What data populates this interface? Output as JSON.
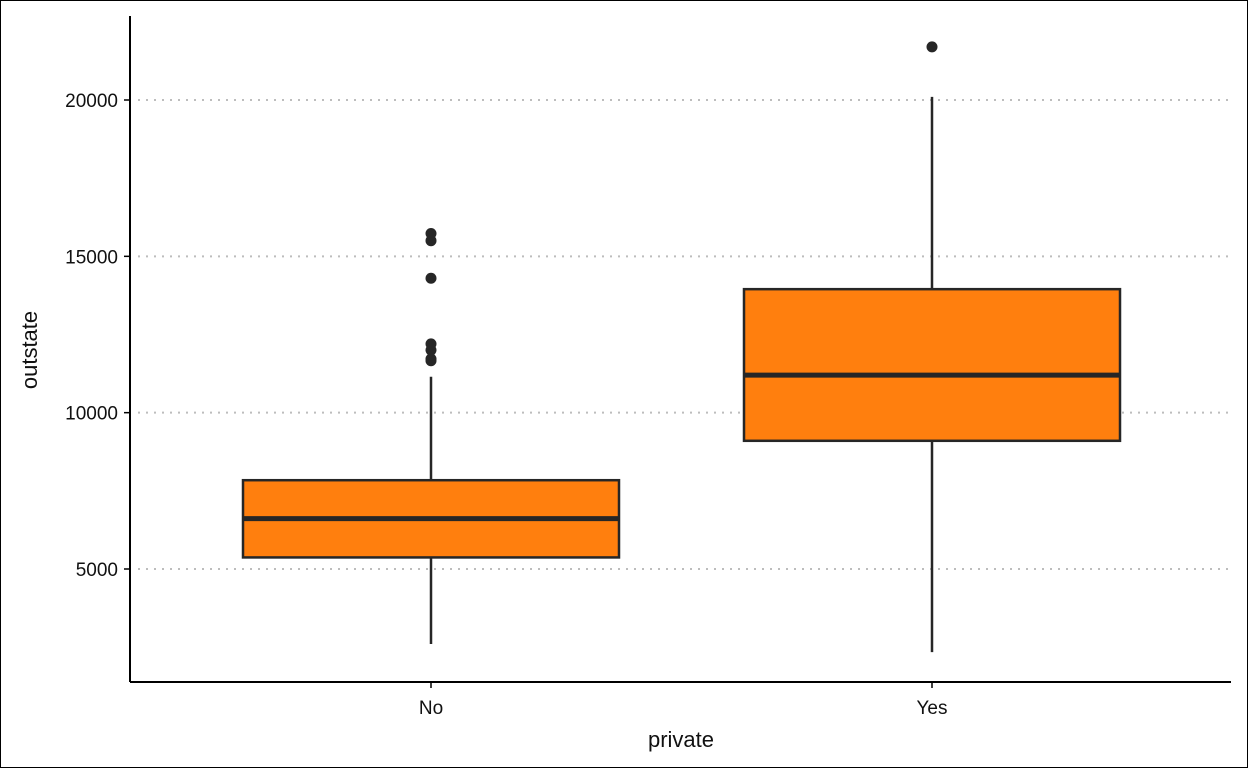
{
  "chart_data": {
    "type": "boxplot",
    "title": "",
    "xlabel": "private",
    "ylabel": "outstate",
    "categories": [
      "No",
      "Yes"
    ],
    "ylim": [
      2000,
      22200
    ],
    "y_ticks": [
      5000,
      10000,
      15000,
      20000
    ],
    "y_tick_labels": [
      "5000",
      "10000",
      "15000",
      "20000"
    ],
    "grid": "horizontal dotted at major y ticks",
    "legend": "none",
    "boxes": [
      {
        "category": "No",
        "whisker_low": 2600,
        "q1": 5370,
        "median": 6610,
        "q3": 7840,
        "whisker_high": 11150,
        "outliers": [
          11660,
          11720,
          12000,
          12200,
          14300,
          15500,
          15730
        ]
      },
      {
        "category": "Yes",
        "whisker_low": 2340,
        "q1": 9100,
        "median": 11200,
        "q3": 13950,
        "whisker_high": 20100,
        "outliers": [
          21700
        ]
      }
    ],
    "colors": {
      "box_fill": "#FF7F0E",
      "outline": "#262626",
      "grid": "#BDBDBD",
      "axis": "#000000"
    }
  }
}
